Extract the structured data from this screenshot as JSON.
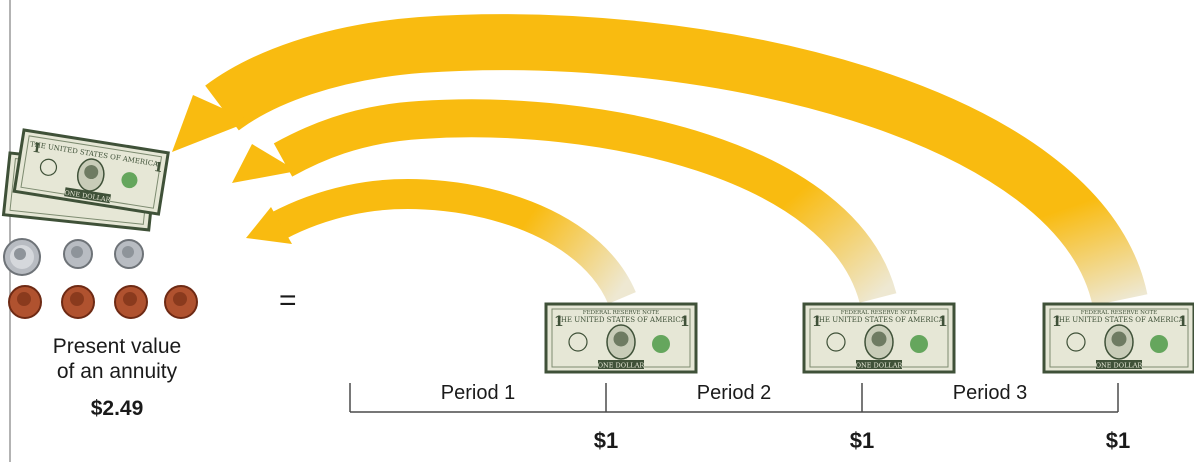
{
  "present_value": {
    "label": "Present value of an annuity",
    "label_line1": "Present value",
    "label_line2": "of an annuity",
    "amount": "$2.49"
  },
  "equals_sign": "=",
  "periods": [
    {
      "label": "Period 1",
      "payment": "$1"
    },
    {
      "label": "Period 2",
      "payment": "$1"
    },
    {
      "label": "Period 3",
      "payment": "$1"
    }
  ],
  "bill": {
    "top_text": "FEDERAL RESERVE NOTE",
    "country_text": "THE UNITED STATES OF AMERICA",
    "denomination_text": "ONE DOLLAR",
    "corner_numeral": "1"
  },
  "colors": {
    "arrow": "#F9BB10",
    "arrow_fade": "#EEE8D2",
    "bill_paper": "#E6E7D6",
    "bill_ink": "#3F5138",
    "bill_seal": "#4E9A48",
    "penny": "#B0522F",
    "silver_coin": "#B8BCC2",
    "text": "#1A1A1A",
    "timeline": "#4A4A4A"
  },
  "icons": {
    "bill": "dollar-bill-icon",
    "quarter": "quarter-coin-icon",
    "dime": "dime-coin-icon",
    "penny": "penny-coin-icon",
    "arrow": "discount-arrow-icon"
  }
}
